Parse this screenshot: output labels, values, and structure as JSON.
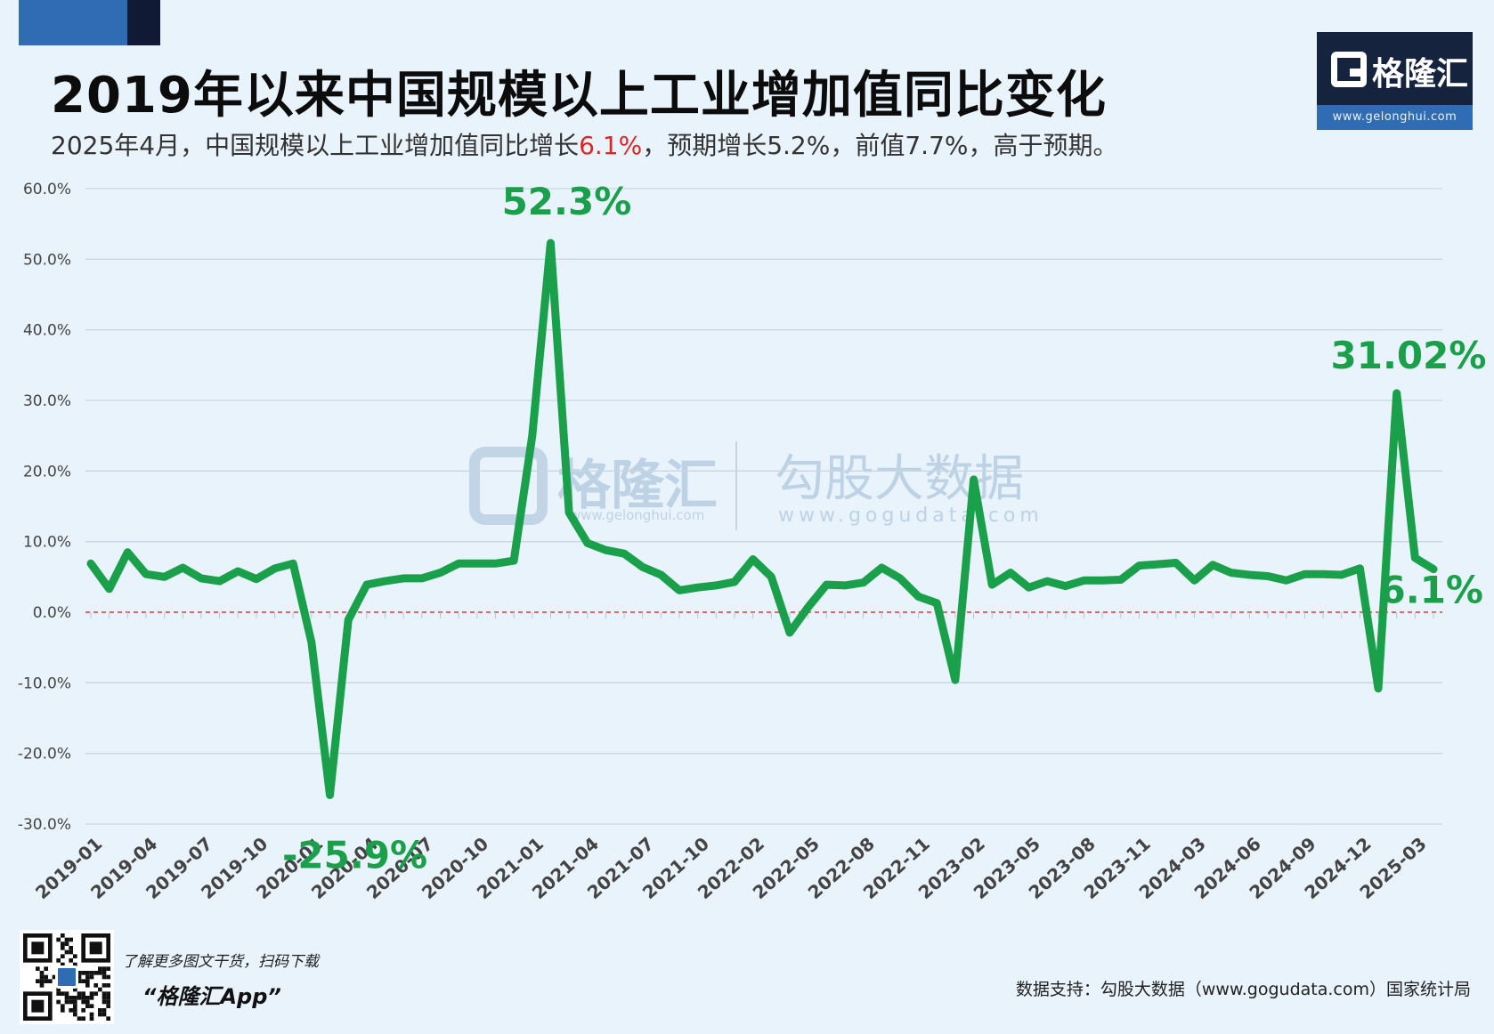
{
  "header": {
    "title": "2019年以来中国规模以上工业增加值同比变化",
    "subtitle_prefix": "2025年4月，中国规模以上工业增加值同比增长",
    "subtitle_highlight": "6.1%",
    "subtitle_suffix": "，预期增长5.2%，前值7.7%，高于预期。"
  },
  "brand": {
    "name": "格隆汇",
    "url": "www.gelonghui.com"
  },
  "watermark": {
    "left_name": "格隆汇",
    "left_url": "www.gelonghui.com",
    "right_name": "勾股大数据",
    "right_url": "www.gogudata.com"
  },
  "footer": {
    "promo_text": "了解更多图文干货，扫码下载",
    "promo_app": "“格隆汇App”",
    "source": "数据支持：勾股大数据（www.gogudata.com）国家统计局"
  },
  "colors": {
    "line": "#1aa04a",
    "zero_line": "#e03a3a",
    "grid": "#c9d6e2",
    "highlight": "#e02424"
  },
  "chart_data": {
    "type": "line",
    "ylim": [
      -30,
      60
    ],
    "yticks": [
      "60.0%",
      "50.0%",
      "40.0%",
      "30.0%",
      "20.0%",
      "10.0%",
      "0.0%",
      "-10.0%",
      "-20.0%",
      "-30.0%"
    ],
    "ytick_values": [
      60,
      50,
      40,
      30,
      20,
      10,
      0,
      -10,
      -20,
      -30
    ],
    "xtick_labels": [
      "2019-01",
      "2019-04",
      "2019-07",
      "2019-10",
      "2020-01",
      "2020-04",
      "2020-07",
      "2020-10",
      "2021-01",
      "2021-04",
      "2021-07",
      "2021-10",
      "2022-02",
      "2022-05",
      "2022-08",
      "2022-11",
      "2023-02",
      "2023-05",
      "2023-08",
      "2023-11",
      "2024-03",
      "2024-06",
      "2024-09",
      "2024-12",
      "2025-03"
    ],
    "xtick_positions": [
      0,
      3,
      6,
      9,
      12,
      15,
      18,
      21,
      24,
      27,
      30,
      33,
      36,
      39,
      42,
      45,
      48,
      51,
      54,
      57,
      60,
      63,
      66,
      69,
      72
    ],
    "series": [
      {
        "values": [
          6.9,
          3.3,
          8.5,
          5.4,
          5.0,
          6.3,
          4.8,
          4.4,
          5.8,
          4.7,
          6.2,
          6.9,
          -4.3,
          -25.9,
          -1.1,
          3.9,
          4.4,
          4.8,
          4.8,
          5.6,
          6.9,
          6.9,
          6.9,
          7.3,
          25.0,
          52.3,
          14.1,
          9.8,
          8.8,
          8.3,
          6.4,
          5.3,
          3.1,
          3.5,
          3.8,
          4.3,
          7.5,
          5.0,
          -2.9,
          0.7,
          3.9,
          3.8,
          4.2,
          6.3,
          4.8,
          2.2,
          1.3,
          -9.6,
          18.8,
          3.9,
          5.6,
          3.5,
          4.4,
          3.7,
          4.5,
          4.5,
          4.6,
          6.6,
          6.8,
          7.0,
          4.5,
          6.7,
          5.6,
          5.3,
          5.1,
          4.5,
          5.4,
          5.4,
          5.3,
          6.2,
          -10.8,
          31.02,
          7.7,
          6.1
        ]
      }
    ],
    "annotations": [
      {
        "index": 25,
        "label": "52.3%"
      },
      {
        "index": 13,
        "label": "-25.9%"
      },
      {
        "index": 71,
        "label": "31.02%"
      },
      {
        "index": 73,
        "label": "6.1%"
      }
    ]
  }
}
